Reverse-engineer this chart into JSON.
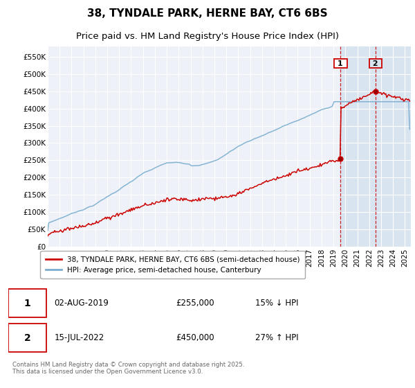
{
  "title": "38, TYNDALE PARK, HERNE BAY, CT6 6BS",
  "subtitle": "Price paid vs. HM Land Registry's House Price Index (HPI)",
  "ylabel_ticks": [
    "£0",
    "£50K",
    "£100K",
    "£150K",
    "£200K",
    "£250K",
    "£300K",
    "£350K",
    "£400K",
    "£450K",
    "£500K",
    "£550K"
  ],
  "ytick_values": [
    0,
    50000,
    100000,
    150000,
    200000,
    250000,
    300000,
    350000,
    400000,
    450000,
    500000,
    550000
  ],
  "ylim": [
    0,
    580000
  ],
  "xlim_start": 1995.0,
  "xlim_end": 2025.5,
  "sale1_date": 2019.58,
  "sale1_price": 255000,
  "sale2_date": 2022.54,
  "sale2_price": 450000,
  "legend_line1": "38, TYNDALE PARK, HERNE BAY, CT6 6BS (semi-detached house)",
  "legend_line2": "HPI: Average price, semi-detached house, Canterbury",
  "footer": "Contains HM Land Registry data © Crown copyright and database right 2025.\nThis data is licensed under the Open Government Licence v3.0.",
  "red_color": "#cc0000",
  "blue_color": "#7aadcf",
  "bg_plot": "#eef2f8",
  "shade_color": "#d8e4f0",
  "title_fontsize": 11,
  "subtitle_fontsize": 9.5,
  "tick_fontsize": 7.5
}
